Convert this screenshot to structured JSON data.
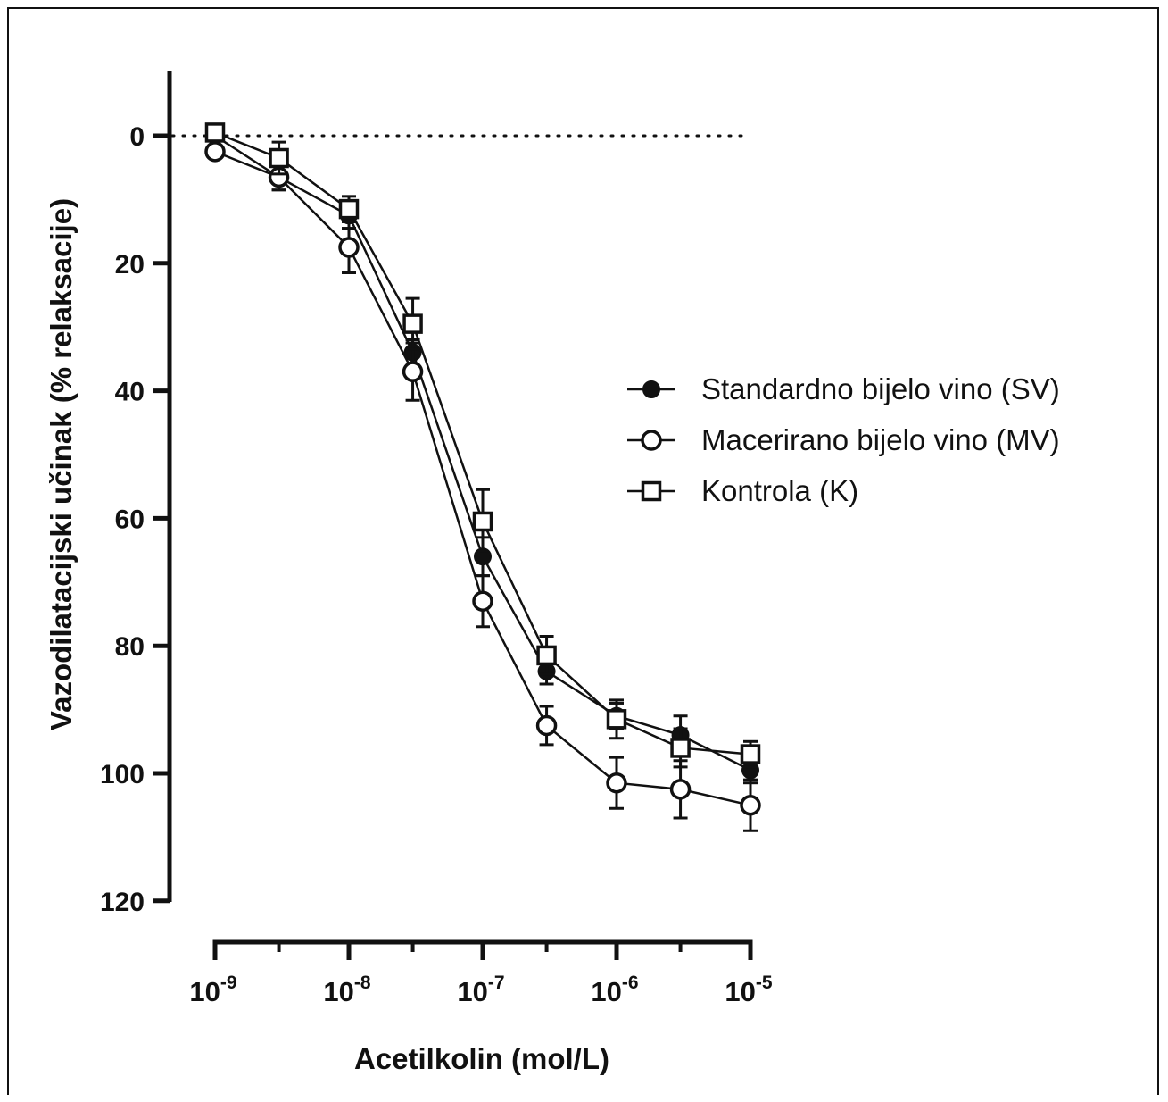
{
  "chart_data": {
    "type": "line",
    "xlabel": "Acetilkolin (mol/L)",
    "ylabel": "Vazodilatacijski učinak (% relaksacije)",
    "x_scale": "log",
    "xlim": [
      1e-09,
      1e-05
    ],
    "ylim": [
      120,
      -10
    ],
    "y_inverted": true,
    "y_ticks": [
      0,
      20,
      40,
      60,
      80,
      100,
      120
    ],
    "y_tick_labels": [
      "0",
      "20",
      "40",
      "60",
      "80",
      "100",
      "120"
    ],
    "x_ticks": [
      {
        "value": 1e-09,
        "base": "10",
        "exp": "-9"
      },
      {
        "value": 1e-08,
        "base": "10",
        "exp": "-8"
      },
      {
        "value": 1e-07,
        "base": "10",
        "exp": "-7"
      },
      {
        "value": 1e-06,
        "base": "10",
        "exp": "-6"
      },
      {
        "value": 1e-05,
        "base": "10",
        "exp": "-5"
      }
    ],
    "x_minor_ticks": [
      3e-09,
      3e-08,
      3e-07,
      3e-06
    ],
    "reference_line": {
      "y": 0,
      "style": "dotted"
    },
    "legend_position": "right",
    "x": [
      1e-09,
      3e-09,
      1e-08,
      3e-08,
      1e-07,
      3e-07,
      1e-06,
      3e-06,
      1e-05
    ],
    "series": [
      {
        "name": "Standardno bijelo vino (SV)",
        "marker": "filled-circle",
        "values": [
          0,
          6.5,
          12.5,
          34,
          66,
          84,
          91,
          94,
          99.5
        ],
        "errors": [
          0.5,
          2,
          2,
          2,
          3,
          2,
          2,
          3,
          2
        ]
      },
      {
        "name": "Macerirano bijelo vino (MV)",
        "marker": "open-circle",
        "values": [
          2.5,
          6.5,
          17.5,
          37,
          73,
          92.5,
          101.5,
          102.5,
          105
        ],
        "errors": [
          0.5,
          2,
          4,
          4.5,
          4,
          3,
          4,
          4.5,
          4
        ]
      },
      {
        "name": "Kontrola (K)",
        "marker": "open-square",
        "values": [
          -0.5,
          3.5,
          11.5,
          29.5,
          60.5,
          81.5,
          91.5,
          96,
          97
        ],
        "errors": [
          0.5,
          2.5,
          2,
          4,
          5,
          3,
          3,
          3,
          2
        ]
      }
    ]
  },
  "colors": {
    "ink": "#111111",
    "background": "#ffffff"
  }
}
